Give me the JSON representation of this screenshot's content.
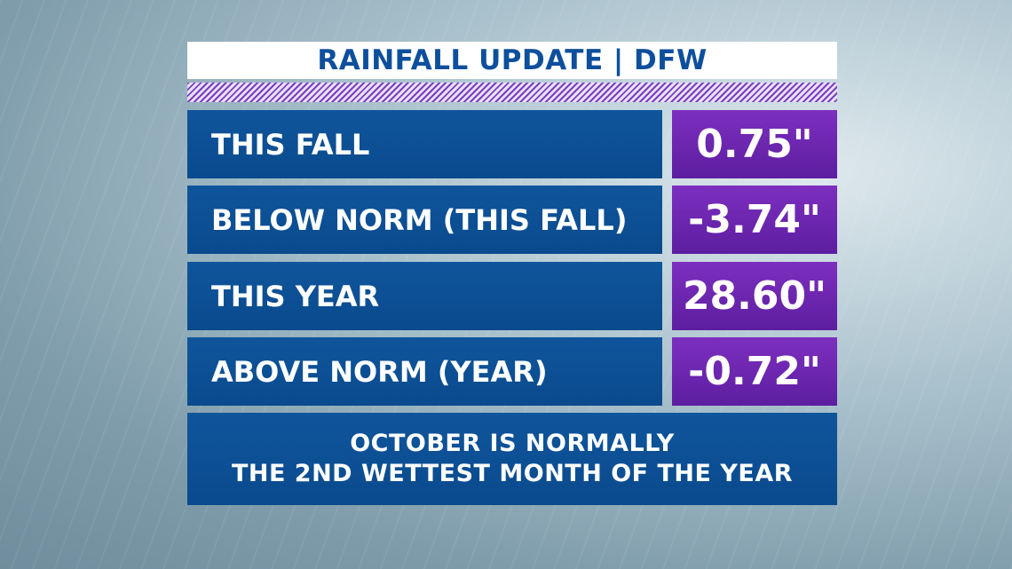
{
  "header": {
    "title": "RAINFALL UPDATE | DFW"
  },
  "rows": [
    {
      "label": "THIS FALL",
      "value": "0.75\""
    },
    {
      "label": "BELOW NORM (THIS FALL)",
      "value": "-3.74\""
    },
    {
      "label": "THIS YEAR",
      "value": "28.60\""
    },
    {
      "label": "ABOVE NORM (YEAR)",
      "value": "-0.72\""
    }
  ],
  "footer": {
    "lines": [
      "OCTOBER IS NORMALLY",
      "THE 2ND WETTEST MONTH OF THE YEAR"
    ]
  }
}
